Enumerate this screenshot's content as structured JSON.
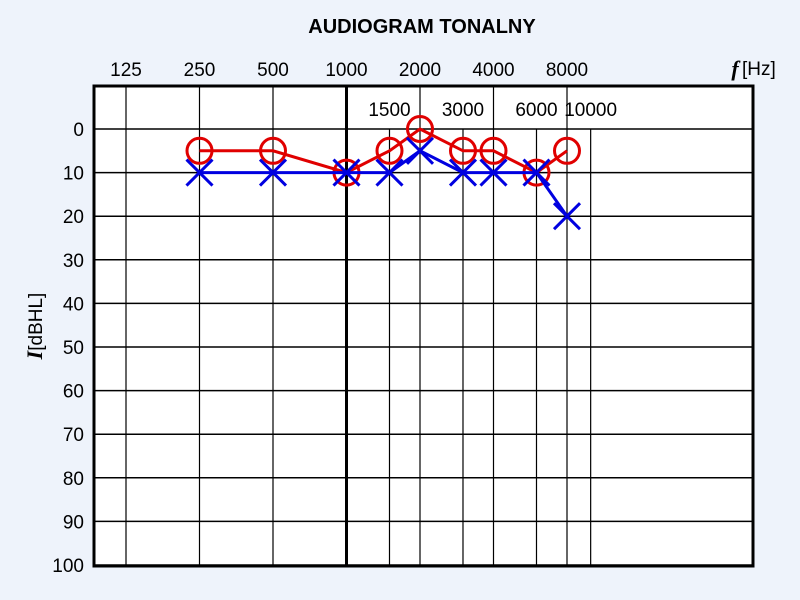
{
  "chart_data": {
    "type": "line",
    "title": "AUDIOGRAM TONALNY",
    "xlabel": {
      "symbol": "f",
      "unit": "[Hz]"
    },
    "ylabel": {
      "symbol": "I",
      "unit": "[dBHL]"
    },
    "x_scale": "log2",
    "x_ticks_primary": [
      "125",
      "250",
      "500",
      "1000",
      "2000",
      "4000",
      "8000"
    ],
    "x_ticks_secondary": [
      "1500",
      "3000",
      "6000",
      "10000"
    ],
    "y_ticks": [
      "0",
      "10",
      "20",
      "30",
      "40",
      "50",
      "60",
      "70",
      "80",
      "90",
      "100"
    ],
    "ylim": [
      0,
      100
    ],
    "y_inverted": true,
    "grid": true,
    "series": [
      {
        "marker": "circle",
        "color": "#e00000",
        "points": [
          {
            "x": 250,
            "y": 5
          },
          {
            "x": 500,
            "y": 5
          },
          {
            "x": 1000,
            "y": 10
          },
          {
            "x": 1500,
            "y": 5
          },
          {
            "x": 2000,
            "y": 0
          },
          {
            "x": 3000,
            "y": 5
          },
          {
            "x": 4000,
            "y": 5
          },
          {
            "x": 6000,
            "y": 10
          },
          {
            "x": 8000,
            "y": 5
          }
        ]
      },
      {
        "marker": "cross",
        "color": "#0000e0",
        "points": [
          {
            "x": 250,
            "y": 10
          },
          {
            "x": 500,
            "y": 10
          },
          {
            "x": 1000,
            "y": 10
          },
          {
            "x": 1500,
            "y": 10
          },
          {
            "x": 2000,
            "y": 5
          },
          {
            "x": 3000,
            "y": 10
          },
          {
            "x": 4000,
            "y": 10
          },
          {
            "x": 6000,
            "y": 10
          },
          {
            "x": 8000,
            "y": 20
          }
        ]
      }
    ]
  }
}
